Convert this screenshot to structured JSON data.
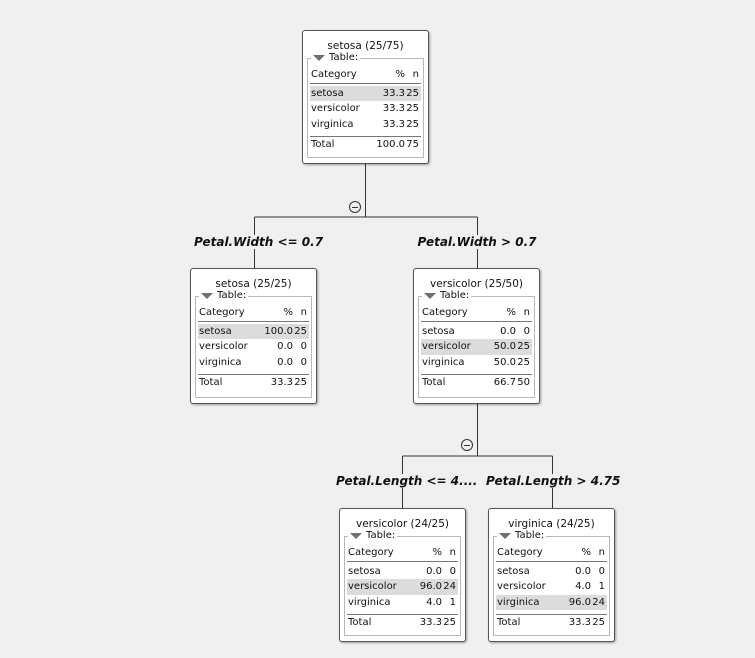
{
  "tree": {
    "columns": {
      "category": "Category",
      "percent": "%",
      "n": "n"
    },
    "table_label": "Table:",
    "total_label": "Total",
    "nodes": [
      {
        "title": "setosa (25/75)",
        "rows": [
          [
            "setosa",
            "33.3",
            "25"
          ],
          [
            "versicolor",
            "33.3",
            "25"
          ],
          [
            "virginica",
            "33.3",
            "25"
          ]
        ],
        "highlight": 0,
        "total": [
          "100.0",
          "75"
        ]
      },
      {
        "title": "setosa (25/25)",
        "rows": [
          [
            "setosa",
            "100.0",
            "25"
          ],
          [
            "versicolor",
            "0.0",
            "0"
          ],
          [
            "virginica",
            "0.0",
            "0"
          ]
        ],
        "highlight": 0,
        "total": [
          "33.3",
          "25"
        ]
      },
      {
        "title": "versicolor (25/50)",
        "rows": [
          [
            "setosa",
            "0.0",
            "0"
          ],
          [
            "versicolor",
            "50.0",
            "25"
          ],
          [
            "virginica",
            "50.0",
            "25"
          ]
        ],
        "highlight": 1,
        "total": [
          "66.7",
          "50"
        ]
      },
      {
        "title": "versicolor (24/25)",
        "rows": [
          [
            "setosa",
            "0.0",
            "0"
          ],
          [
            "versicolor",
            "96.0",
            "24"
          ],
          [
            "virginica",
            "4.0",
            "1"
          ]
        ],
        "highlight": 1,
        "total": [
          "33.3",
          "25"
        ]
      },
      {
        "title": "virginica (24/25)",
        "rows": [
          [
            "setosa",
            "0.0",
            "0"
          ],
          [
            "versicolor",
            "4.0",
            "1"
          ],
          [
            "virginica",
            "96.0",
            "24"
          ]
        ],
        "highlight": 2,
        "total": [
          "33.3",
          "25"
        ]
      }
    ],
    "splits": [
      "Petal.Width <= 0.7",
      "Petal.Width > 0.7",
      "Petal.Length <= 4....",
      "Petal.Length > 4.75"
    ]
  },
  "colors": {
    "background": "#f0f0f0",
    "row_highlight": "#dcdcdc",
    "edge": "#333333"
  }
}
